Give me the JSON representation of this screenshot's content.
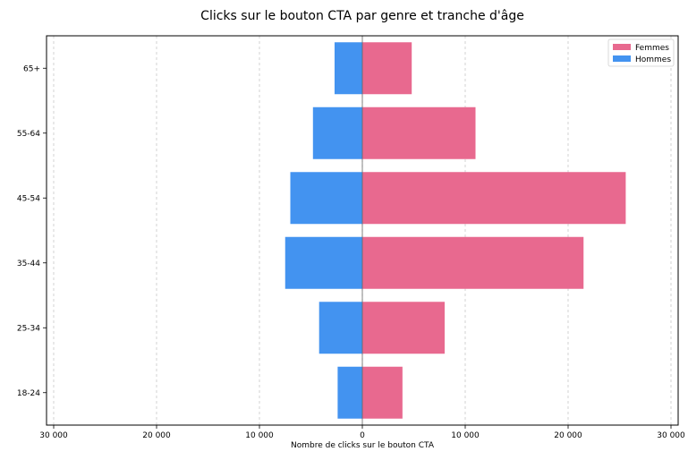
{
  "chart_data": {
    "type": "bar",
    "orientation": "horizontal",
    "title": "Clicks sur le bouton CTA par genre et tranche d'âge",
    "xlabel": "Nombre de clicks sur le bouton CTA",
    "ylabel": "",
    "categories": [
      "18-24",
      "25-34",
      "35-44",
      "45-54",
      "55-64",
      "65+"
    ],
    "series": [
      {
        "name": "Femmes",
        "color": "#e8698f",
        "values": [
          3900,
          8000,
          21500,
          25600,
          11000,
          4800
        ]
      },
      {
        "name": "Hommes",
        "color": "#4393f0",
        "values": [
          -2400,
          -4200,
          -7500,
          -7000,
          -4800,
          -2700
        ]
      }
    ],
    "xlim": [
      -30000,
      30000
    ],
    "xticks": [
      -30000,
      -20000,
      -10000,
      0,
      10000,
      20000,
      30000
    ],
    "xtick_labels": [
      "30 000",
      "20 000",
      "10 000",
      "0",
      "10 000",
      "20 000",
      "30 000"
    ],
    "grid": "x-dashed",
    "legend": "top-right"
  }
}
